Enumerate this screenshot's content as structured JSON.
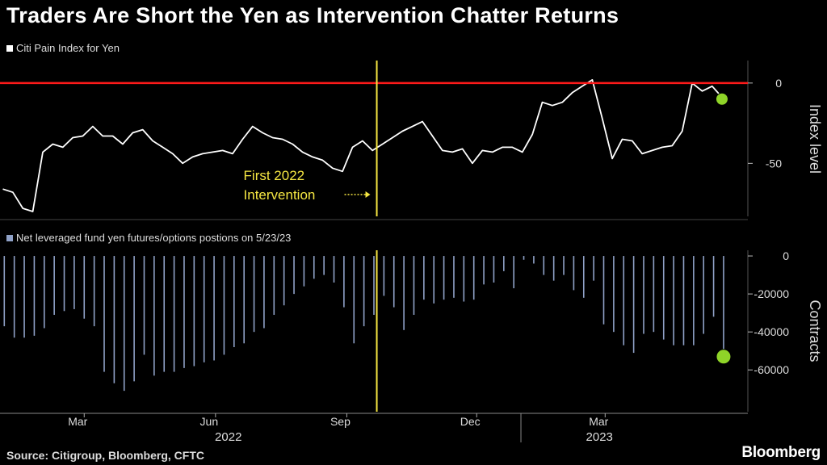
{
  "title": "Traders Are Short the Yen as Intervention Chatter Returns",
  "source": "Source: Citigroup, Bloomberg, CFTC",
  "brand": "Bloomberg",
  "colors": {
    "background": "#000000",
    "line": "#ffffff",
    "bars": "#8fa1c7",
    "zero_line": "#ff1a1a",
    "intervention": "#f5e642",
    "marker": "#8fd428"
  },
  "chart_data": [
    {
      "type": "line",
      "legend": "Citi Pain Index for Yen",
      "ylabel": "Index level",
      "ylim": [
        -83,
        14
      ],
      "yticks": [
        0,
        -50
      ],
      "reference_line": 0,
      "annotation": {
        "text": [
          "First 2022",
          "Intervention"
        ],
        "date": "2022-09-22"
      },
      "highlight_point": {
        "date": "2023-05-23",
        "value": -10
      },
      "series": [
        {
          "x": [
            "2022-01-03",
            "2022-01-10",
            "2022-01-17",
            "2022-01-24",
            "2022-01-31",
            "2022-02-07",
            "2022-02-14",
            "2022-02-21",
            "2022-02-28",
            "2022-03-07",
            "2022-03-14",
            "2022-03-21",
            "2022-03-28",
            "2022-04-04",
            "2022-04-11",
            "2022-04-18",
            "2022-04-25",
            "2022-05-02",
            "2022-05-09",
            "2022-05-16",
            "2022-05-23",
            "2022-05-30",
            "2022-06-06",
            "2022-06-13",
            "2022-06-20",
            "2022-06-27",
            "2022-07-04",
            "2022-07-11",
            "2022-07-18",
            "2022-07-25",
            "2022-08-01",
            "2022-08-08",
            "2022-08-15",
            "2022-08-22",
            "2022-08-29",
            "2022-09-05",
            "2022-09-12",
            "2022-09-19",
            "2022-09-26",
            "2022-10-03",
            "2022-10-10",
            "2022-10-17",
            "2022-10-24",
            "2022-10-31",
            "2022-11-07",
            "2022-11-14",
            "2022-11-21",
            "2022-11-28",
            "2022-12-05",
            "2022-12-12",
            "2022-12-19",
            "2022-12-26",
            "2023-01-02",
            "2023-01-09",
            "2023-01-16",
            "2023-01-23",
            "2023-01-30",
            "2023-02-06",
            "2023-02-13",
            "2023-02-20",
            "2023-02-27",
            "2023-03-06",
            "2023-03-13",
            "2023-03-20",
            "2023-03-27",
            "2023-04-03",
            "2023-04-10",
            "2023-04-17",
            "2023-04-24",
            "2023-05-01",
            "2023-05-08",
            "2023-05-15",
            "2023-05-23"
          ],
          "values": [
            -66,
            -68,
            -78,
            -80,
            -43,
            -38,
            -40,
            -34,
            -33,
            -27,
            -33,
            -33,
            -38,
            -31,
            -29,
            -36,
            -40,
            -44,
            -50,
            -46,
            -44,
            -43,
            -42,
            -44,
            -35,
            -27,
            -31,
            -34,
            -35,
            -38,
            -43,
            -46,
            -48,
            -53,
            -55,
            -40,
            -36,
            -42,
            -38,
            -34,
            -30,
            -27,
            -24,
            -33,
            -42,
            -43,
            -41,
            -50,
            -42,
            -43,
            -40,
            -40,
            -43,
            -32,
            -12,
            -14,
            -12,
            -6,
            -2,
            2,
            -22,
            -47,
            -35,
            -36,
            -44,
            -42,
            -40,
            -39,
            -30,
            0,
            -5,
            -2,
            -10
          ]
        }
      ]
    },
    {
      "type": "bar",
      "legend": "Net leveraged fund yen futures/options postions on 5/23/23",
      "ylabel": "Contracts",
      "ylim": [
        -82000,
        3000
      ],
      "yticks": [
        0,
        -20000,
        -40000,
        -60000
      ],
      "highlight_point": {
        "date": "2023-05-23",
        "value": -53000
      },
      "series": [
        {
          "x": [
            "2022-01-04",
            "2022-01-11",
            "2022-01-18",
            "2022-01-25",
            "2022-02-01",
            "2022-02-08",
            "2022-02-15",
            "2022-02-22",
            "2022-03-01",
            "2022-03-08",
            "2022-03-15",
            "2022-03-22",
            "2022-03-29",
            "2022-04-05",
            "2022-04-12",
            "2022-04-19",
            "2022-04-26",
            "2022-05-03",
            "2022-05-10",
            "2022-05-17",
            "2022-05-24",
            "2022-05-31",
            "2022-06-07",
            "2022-06-14",
            "2022-06-21",
            "2022-06-28",
            "2022-07-05",
            "2022-07-12",
            "2022-07-19",
            "2022-07-26",
            "2022-08-02",
            "2022-08-09",
            "2022-08-16",
            "2022-08-23",
            "2022-08-30",
            "2022-09-06",
            "2022-09-13",
            "2022-09-20",
            "2022-09-27",
            "2022-10-04",
            "2022-10-11",
            "2022-10-18",
            "2022-10-25",
            "2022-11-01",
            "2022-11-08",
            "2022-11-15",
            "2022-11-22",
            "2022-11-29",
            "2022-12-06",
            "2022-12-13",
            "2022-12-20",
            "2022-12-27",
            "2023-01-03",
            "2023-01-10",
            "2023-01-17",
            "2023-01-24",
            "2023-01-31",
            "2023-02-07",
            "2023-02-14",
            "2023-02-21",
            "2023-02-28",
            "2023-03-07",
            "2023-03-14",
            "2023-03-21",
            "2023-03-28",
            "2023-04-04",
            "2023-04-11",
            "2023-04-18",
            "2023-04-25",
            "2023-05-02",
            "2023-05-09",
            "2023-05-16",
            "2023-05-23"
          ],
          "values": [
            -37000,
            -43000,
            -43000,
            -42000,
            -38000,
            -31000,
            -29000,
            -28000,
            -33000,
            -37000,
            -61000,
            -67000,
            -71000,
            -66000,
            -52000,
            -63000,
            -61000,
            -61000,
            -59000,
            -58000,
            -56000,
            -55000,
            -52000,
            -48000,
            -46000,
            -40000,
            -38000,
            -31000,
            -26000,
            -20000,
            -16000,
            -12000,
            -10000,
            -14000,
            -27000,
            -46000,
            -37000,
            -31000,
            -21000,
            -27000,
            -39000,
            -31000,
            -23000,
            -25000,
            -23000,
            -22000,
            -24000,
            -23000,
            -15000,
            -14000,
            -8000,
            -17000,
            -2000,
            -4000,
            -10000,
            -13000,
            -10000,
            -18000,
            -22000,
            -13000,
            -36000,
            -40000,
            -47000,
            -51000,
            -41000,
            -40000,
            -44000,
            -47000,
            -47000,
            -47000,
            -41000,
            -32000,
            -53000
          ]
        }
      ]
    }
  ],
  "x_axis": {
    "month_ticks": [
      {
        "label": "Mar",
        "date": "2022-03-01"
      },
      {
        "label": "Jun",
        "date": "2022-06-01"
      },
      {
        "label": "Sep",
        "date": "2022-09-01"
      },
      {
        "label": "Dec",
        "date": "2022-12-01"
      },
      {
        "label": "Mar",
        "date": "2023-03-01"
      }
    ],
    "year_labels": [
      {
        "label": "2022",
        "date": "2022-06-10"
      },
      {
        "label": "2023",
        "date": "2023-02-25"
      }
    ],
    "year_divider": "2023-01-01",
    "range": [
      "2022-01-01",
      "2023-06-09"
    ]
  }
}
